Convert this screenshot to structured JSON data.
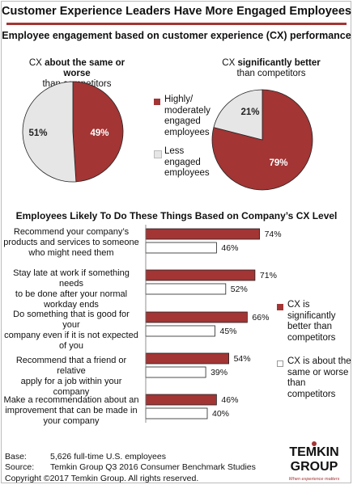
{
  "page": {
    "title": "Customer Experience Leaders Have More Engaged Employees",
    "subtitle": "Employee engagement based on customer experience (CX) performance",
    "bar_section_title": "Employees Likely To Do These Things Based on Company’s CX Level",
    "colors": {
      "accent": "#a33535",
      "light": "#e6e6e6",
      "frame": "#bcbcbc"
    }
  },
  "pies": {
    "left": {
      "cap_plain_1": "CX",
      "cap_bold": "about the same or worse",
      "cap_line2": "than competitors"
    },
    "right": {
      "cap_plain_1": "CX",
      "cap_bold": "significantly better",
      "cap_line2": "than competitors"
    },
    "legend": [
      {
        "lines": [
          "Highly/",
          "moderately",
          "engaged",
          "employees"
        ],
        "color": "#a33535"
      },
      {
        "lines": [
          "Less",
          "engaged",
          "employees"
        ],
        "color": "#e6e6e6"
      }
    ]
  },
  "bar_legend": [
    {
      "lines": [
        "CX is",
        "significantly",
        "better than",
        "competitors"
      ],
      "color": "#a33535"
    },
    {
      "lines": [
        "CX is about the",
        "same or worse",
        "than",
        "competitors"
      ],
      "color": "#ffffff"
    }
  ],
  "footer": {
    "base_label": "Base:",
    "base_text": "5,626 full-time U.S. employees",
    "source_label": "Source:",
    "source_text": "Temkin Group Q3 2016 Consumer Benchmark Studies",
    "copyright": "Copyright ©2017 Temkin Group. All rights reserved."
  },
  "logo": {
    "line1": "TEMKIN",
    "line2": "GROUP",
    "tagline": "When experience matters"
  },
  "chart_data": [
    {
      "type": "pie",
      "title": "CX about the same or worse than competitors",
      "labels": [
        "Highly/ moderately engaged employees",
        "Less engaged employees"
      ],
      "values": [
        49,
        51
      ],
      "value_labels": [
        "49%",
        "51%"
      ],
      "colors": [
        "#a33535",
        "#e6e6e6"
      ]
    },
    {
      "type": "pie",
      "title": "CX significantly better than competitors",
      "labels": [
        "Highly/ moderately engaged employees",
        "Less engaged employees"
      ],
      "values": [
        79,
        21
      ],
      "value_labels": [
        "79%",
        "21%"
      ],
      "colors": [
        "#a33535",
        "#e6e6e6"
      ]
    },
    {
      "type": "bar",
      "orientation": "horizontal",
      "title": "Employees Likely To Do These Things Based on Company’s CX Level",
      "categories": [
        [
          "Recommend your company’s",
          "products and services to someone",
          "who might need them"
        ],
        [
          "Stay late at work if something needs",
          "to be done after your normal",
          "workday ends"
        ],
        [
          "Do something that is good for your",
          "company even if it is not expected",
          "of you"
        ],
        [
          "Recommend that a friend or relative",
          "apply for a job within your company"
        ],
        [
          "Make a recommendation about an",
          "improvement that can be made in",
          "your company"
        ]
      ],
      "series": [
        {
          "name": "CX is significantly better than competitors",
          "values": [
            74,
            71,
            66,
            54,
            46
          ],
          "value_labels": [
            "74%",
            "71%",
            "66%",
            "54%",
            "46%"
          ],
          "color": "#a33535"
        },
        {
          "name": "CX is about the same or worse than competitors",
          "values": [
            46,
            52,
            45,
            39,
            40
          ],
          "value_labels": [
            "46%",
            "52%",
            "45%",
            "39%",
            "40%"
          ],
          "color": "#ffffff"
        }
      ],
      "xlim": [
        0,
        100
      ],
      "grid": false
    }
  ]
}
